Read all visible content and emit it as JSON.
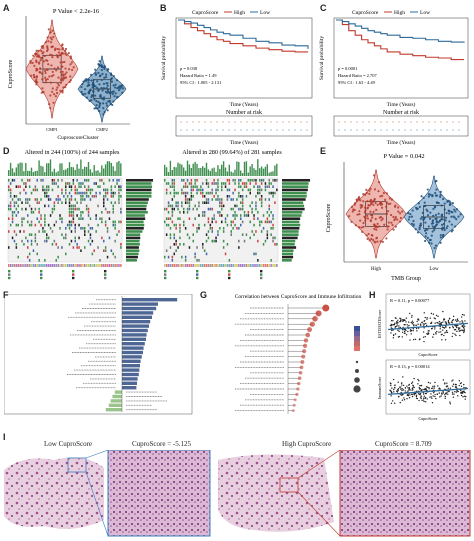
{
  "panels": {
    "a": "A",
    "b": "B",
    "c": "C",
    "d": "D",
    "e": "E",
    "f": "F",
    "g": "G",
    "h": "H",
    "i": "I"
  },
  "colors": {
    "cmp1": "#e07a6e",
    "cmp2": "#2f6fa0",
    "high": "#c0392b",
    "low": "#2c6a9a",
    "forest": "#3b5a8a",
    "green": "#8bc08b",
    "blueBar": "#4f6795",
    "greenBar": "#9bc48d",
    "lollipopRed": "#c0392b"
  },
  "chartA": {
    "pvalue": "P Value < 2.2e-16",
    "ylabel": "CuproScore",
    "xlabel": "CuproscoreCluster",
    "ticks": [
      "CMP1",
      "CMP2"
    ]
  },
  "chartB": {
    "legend_title": "CuproScore",
    "high": "High",
    "low": "Low",
    "ylabel": "Survival probability",
    "xlabel": "Time (Years)",
    "stats": [
      "p = 0.038",
      "Hazard Ratio = 1.49",
      "95% CI : 1.005 - 2.131"
    ],
    "risk_title": "Number at risk",
    "risk_xlabel": "Time (Years)"
  },
  "chartC": {
    "legend_title": "CuproScore",
    "high": "High",
    "low": "Low",
    "ylabel": "Survival probability",
    "xlabel": "Time (Years)",
    "stats": [
      "p = 0.0001",
      "Hazard Ratio = 2.707",
      "95% CI : 1.63 - 4.49"
    ],
    "risk_title": "Number at risk",
    "risk_xlabel": "Time (Years)"
  },
  "chartD": {
    "left_title": "Altered in 244 (100%) of 244 samples",
    "right_title": "Altered in 280 (99.64%) of 281 samples"
  },
  "chartE": {
    "pvalue": "P Value = 0.042",
    "ylabel": "CuproScore",
    "xlabel": "TMB Group",
    "ticks": [
      "High",
      "Low"
    ]
  },
  "chartG": {
    "title": "Correlation between CuproScore and Immune Infiltration"
  },
  "chartH": {
    "top_stat": "R = 0.11, p = 0.00077",
    "top_ylabel": "ESTIMATEScore",
    "top_xlabel": "CuproScore",
    "bottom_stat": "R = 0.13, p = 0.00014",
    "bottom_ylabel": "ImmuneScore",
    "bottom_xlabel": "CuproScore"
  },
  "panelI": {
    "low_label": "Low CuproScore",
    "low_value": "CuproScore = -5.125",
    "high_label": "High CuproScore",
    "high_value": "CuproScore = 8.709"
  },
  "chart_data": [
    {
      "type": "line",
      "id": "B",
      "xlabel": "Time (Years)",
      "ylabel": "Survival probability",
      "ylim": [
        0,
        1
      ],
      "series": [
        {
          "name": "High",
          "x": [
            0,
            0.5,
            1,
            1.5,
            2,
            2.5,
            3,
            3.5,
            4,
            5,
            6,
            7,
            8,
            9,
            10
          ],
          "values": [
            1,
            0.95,
            0.9,
            0.86,
            0.82,
            0.78,
            0.74,
            0.72,
            0.69,
            0.66,
            0.63,
            0.61,
            0.59,
            0.58,
            0.58
          ]
        },
        {
          "name": "Low",
          "x": [
            0,
            0.5,
            1,
            1.5,
            2,
            2.5,
            3,
            3.5,
            4,
            5,
            6,
            7,
            8,
            9,
            10
          ],
          "values": [
            1,
            0.98,
            0.96,
            0.93,
            0.9,
            0.87,
            0.84,
            0.82,
            0.8,
            0.76,
            0.72,
            0.7,
            0.67,
            0.66,
            0.62
          ]
        }
      ]
    },
    {
      "type": "line",
      "id": "C",
      "xlabel": "Time (Years)",
      "ylabel": "Survival probability",
      "ylim": [
        0,
        1
      ],
      "series": [
        {
          "name": "High",
          "x": [
            0,
            0.5,
            1,
            1.5,
            2,
            2.5,
            3,
            3.5,
            4,
            5,
            6,
            7,
            8,
            9,
            10
          ],
          "values": [
            1,
            0.94,
            0.86,
            0.8,
            0.74,
            0.7,
            0.66,
            0.62,
            0.58,
            0.55,
            0.53,
            0.51,
            0.5,
            0.48,
            0.48
          ]
        },
        {
          "name": "Low",
          "x": [
            0,
            0.5,
            1,
            1.5,
            2,
            2.5,
            3,
            3.5,
            4,
            5,
            6,
            7,
            8,
            9,
            10
          ],
          "values": [
            1,
            0.98,
            0.95,
            0.92,
            0.89,
            0.86,
            0.84,
            0.82,
            0.8,
            0.77,
            0.76,
            0.74,
            0.72,
            0.71,
            0.7
          ]
        }
      ]
    },
    {
      "type": "bar",
      "id": "F",
      "orientation": "horizontal",
      "values": [
        0.92,
        0.6,
        0.57,
        0.52,
        0.5,
        0.47,
        0.45,
        0.43,
        0.41,
        0.4,
        0.38,
        0.36,
        0.35,
        0.33,
        0.31,
        0.3,
        0.29,
        0.28,
        0.26,
        0.25,
        0.24,
        -0.12,
        -0.16,
        -0.19,
        -0.22,
        -0.27
      ]
    },
    {
      "type": "scatter",
      "id": "G",
      "title": "Correlation between CuproScore and Immune Infiltration",
      "values": [
        0.42,
        0.34,
        0.3,
        0.27,
        0.24,
        0.22,
        0.2,
        0.19,
        0.18,
        0.17,
        0.16,
        0.15,
        0.14,
        0.13,
        0.12,
        0.11,
        0.1,
        0.08,
        0.07,
        0.06
      ]
    }
  ]
}
